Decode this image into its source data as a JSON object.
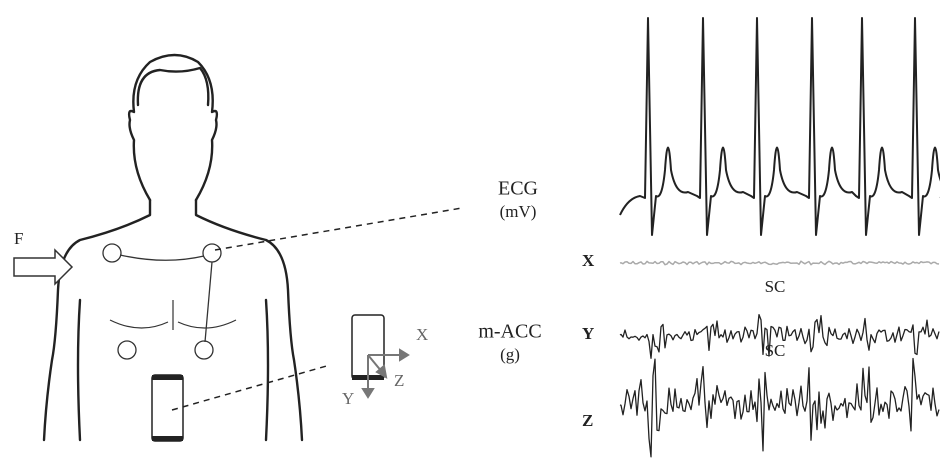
{
  "left_figure": {
    "force_label": "F",
    "phone_axes": {
      "x": "X",
      "y": "Y",
      "z": "Z"
    }
  },
  "ecg": {
    "label": "ECG",
    "unit": "(mV)"
  },
  "acc": {
    "label": "m-ACC",
    "unit": "(g)",
    "channels": [
      "X",
      "Y",
      "Z"
    ],
    "annotations": [
      "SC",
      "SC"
    ]
  }
}
